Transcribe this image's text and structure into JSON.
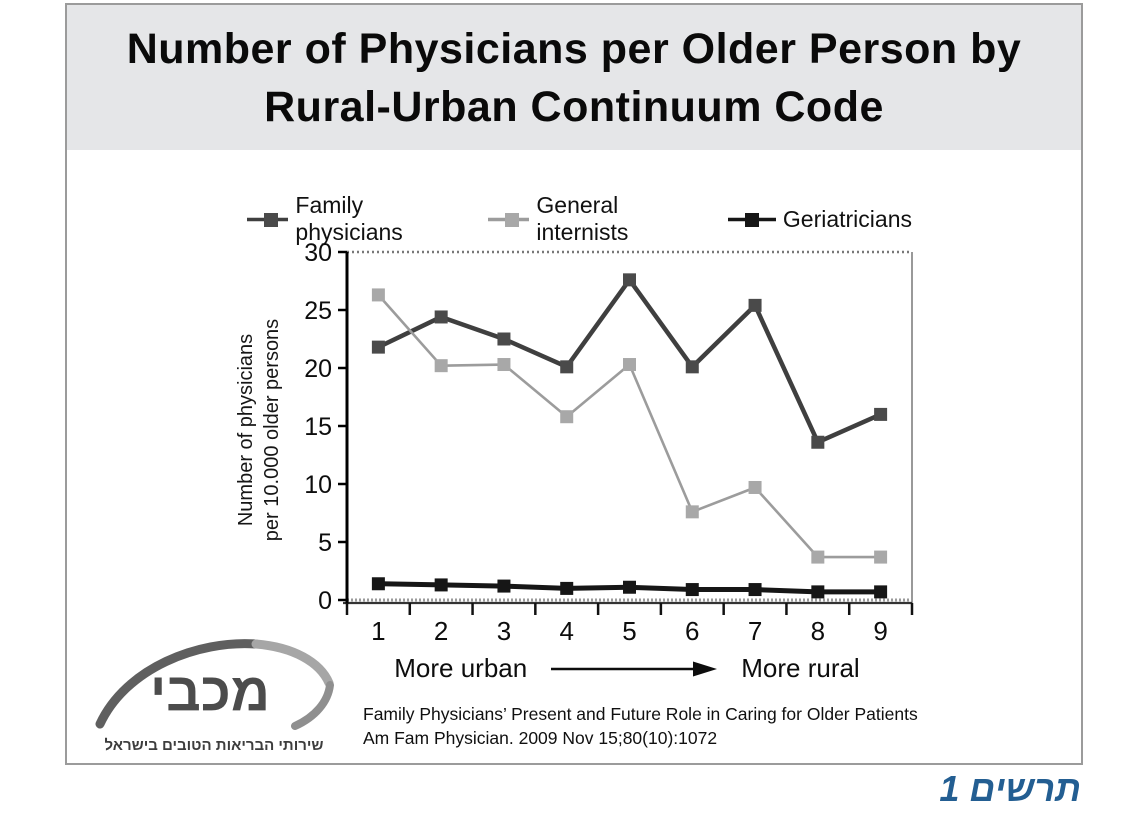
{
  "slide": {
    "title_line1": "Number of Physicians per Older Person by",
    "title_line2": "Rural-Urban Continuum Code"
  },
  "chart_data": {
    "type": "line",
    "categories": [
      "1",
      "2",
      "3",
      "4",
      "5",
      "6",
      "7",
      "8",
      "9"
    ],
    "series": [
      {
        "name": "Family physicians",
        "color": "#4a4a4a",
        "line_color": "#3f3f3f",
        "values": [
          21.8,
          24.4,
          22.5,
          20.1,
          27.6,
          20.1,
          25.4,
          13.6,
          16.0
        ]
      },
      {
        "name": "General internists",
        "color": "#a8a8a8",
        "line_color": "#9c9c9c",
        "values": [
          26.3,
          20.2,
          20.3,
          15.8,
          20.3,
          7.6,
          9.7,
          3.7,
          3.7
        ]
      },
      {
        "name": "Geriatricians",
        "color": "#161616",
        "line_color": "#161616",
        "values": [
          1.4,
          1.3,
          1.2,
          1.0,
          1.1,
          0.9,
          0.9,
          0.7,
          0.7
        ]
      }
    ],
    "title": "Number of Physicians per Older Person by Rural-Urban Continuum Code",
    "xlabel": "",
    "ylabel_line1": "Number of physicians",
    "ylabel_line2": "per 10.000 older persons",
    "ylim": [
      0,
      30
    ],
    "ytick_step": 5,
    "legend_position": "top",
    "grid": false,
    "x_annotation_left": "More urban",
    "x_annotation_right": "More rural"
  },
  "citation": {
    "line1": "Family Physicians’ Present and Future Role in Caring for Older Patients",
    "line2": "Am Fam Physician. 2009 Nov 15;80(10):1072"
  },
  "logo": {
    "name": "מכבי",
    "tagline": "שירותי הבריאות הטובים בישראל"
  },
  "figure_label": {
    "text": "תרשים 1",
    "color": "#235e92"
  }
}
